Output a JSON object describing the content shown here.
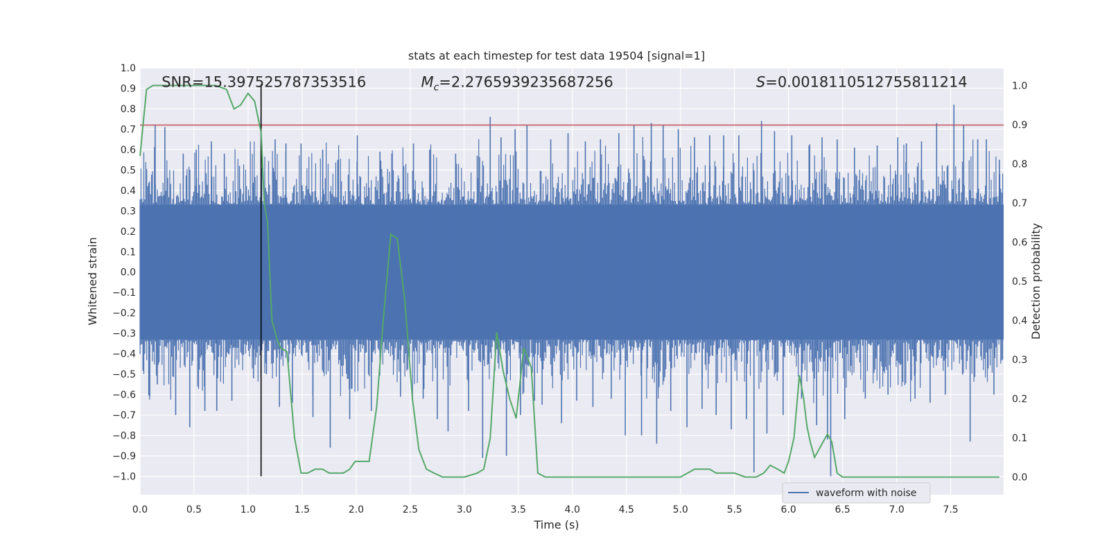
{
  "chart_data": {
    "type": "line",
    "title": "stats at each timestep for test data 19504 [signal=1]",
    "xlabel": "Time (s)",
    "ylabel": "Whitened strain",
    "y2label": "Detection probability",
    "xlim": [
      0.0,
      7.99
    ],
    "ylim": [
      -1.09,
      1.0
    ],
    "y2lim": [
      -0.045,
      1.045
    ],
    "x_ticks": [
      0.0,
      0.5,
      1.0,
      1.5,
      2.0,
      2.5,
      3.0,
      3.5,
      4.0,
      4.5,
      5.0,
      5.5,
      6.0,
      6.5,
      7.0,
      7.5
    ],
    "x_tick_labels": [
      "0.0",
      "0.5",
      "1.0",
      "1.5",
      "2.0",
      "2.5",
      "3.0",
      "3.5",
      "4.0",
      "4.5",
      "5.0",
      "5.5",
      "6.0",
      "6.5",
      "7.0",
      "7.5"
    ],
    "y_ticks": [
      1.0,
      0.9,
      0.8,
      0.7,
      0.6,
      0.5,
      0.4,
      0.3,
      0.2,
      0.1,
      0.0,
      -0.1,
      -0.2,
      -0.3,
      -0.4,
      -0.5,
      -0.6,
      -0.7,
      -0.8,
      -0.9,
      -1.0
    ],
    "y_tick_labels": [
      "1.0",
      "0.9",
      "0.8",
      "0.7",
      "0.6",
      "0.5",
      "0.4",
      "0.3",
      "0.2",
      "0.1",
      "0.0",
      "−0.1",
      "−0.2",
      "−0.3",
      "−0.4",
      "−0.5",
      "−0.6",
      "−0.7",
      "−0.8",
      "−0.9",
      "−1.0"
    ],
    "y2_ticks": [
      1.0,
      0.9,
      0.8,
      0.7,
      0.6,
      0.5,
      0.4,
      0.3,
      0.2,
      0.1,
      0.0
    ],
    "y2_tick_labels": [
      "1.0",
      "0.9",
      "0.8",
      "0.7",
      "0.6",
      "0.5",
      "0.4",
      "0.3",
      "0.2",
      "0.1",
      "0.0"
    ],
    "grid": true,
    "legend_position": "lower-right",
    "background_color": "#eaeaf2",
    "waveform": {
      "name": "waveform with noise",
      "color": "#4c72b0",
      "band_lower": -0.33,
      "band_upper": 0.33,
      "spikes": [
        [
          0.09,
          -0.61
        ],
        [
          0.14,
          0.72
        ],
        [
          0.16,
          -0.55
        ],
        [
          0.23,
          0.71
        ],
        [
          0.33,
          -0.7
        ],
        [
          0.4,
          0.58
        ],
        [
          0.46,
          -0.76
        ],
        [
          0.52,
          0.6
        ],
        [
          0.6,
          -0.68
        ],
        [
          0.66,
          0.64
        ],
        [
          0.71,
          -0.68
        ],
        [
          0.78,
          0.58
        ],
        [
          0.85,
          -0.63
        ],
        [
          0.92,
          0.52
        ],
        [
          1.05,
          -0.52
        ],
        [
          1.12,
          0.76
        ],
        [
          1.17,
          -0.5
        ],
        [
          1.25,
          0.65
        ],
        [
          1.29,
          -0.66
        ],
        [
          1.35,
          0.63
        ],
        [
          1.41,
          -0.64
        ],
        [
          1.49,
          0.63
        ],
        [
          1.6,
          -0.71
        ],
        [
          1.69,
          0.6
        ],
        [
          1.76,
          -0.86
        ],
        [
          1.83,
          0.55
        ],
        [
          1.94,
          -0.72
        ],
        [
          2.01,
          0.67
        ],
        [
          2.14,
          -0.68
        ],
        [
          2.22,
          0.59
        ],
        [
          2.33,
          0.58
        ],
        [
          2.41,
          -0.61
        ],
        [
          2.53,
          0.63
        ],
        [
          2.62,
          -0.62
        ],
        [
          2.68,
          0.6
        ],
        [
          2.75,
          -0.72
        ],
        [
          2.85,
          -0.78
        ],
        [
          2.92,
          0.58
        ],
        [
          3.04,
          -0.68
        ],
        [
          3.12,
          0.57
        ],
        [
          3.17,
          -0.91
        ],
        [
          3.24,
          0.76
        ],
        [
          3.34,
          0.66
        ],
        [
          3.39,
          -0.9
        ],
        [
          3.47,
          0.7
        ],
        [
          3.52,
          -0.7
        ],
        [
          3.58,
          0.72
        ],
        [
          3.65,
          -0.63
        ],
        [
          3.72,
          -0.65
        ],
        [
          3.8,
          0.65
        ],
        [
          3.9,
          -0.74
        ],
        [
          3.96,
          0.68
        ],
        [
          4.04,
          -0.63
        ],
        [
          4.12,
          0.64
        ],
        [
          4.19,
          -0.66
        ],
        [
          4.26,
          0.65
        ],
        [
          4.36,
          -0.62
        ],
        [
          4.43,
          0.68
        ],
        [
          4.49,
          -0.8
        ],
        [
          4.57,
          0.72
        ],
        [
          4.64,
          -0.8
        ],
        [
          4.73,
          0.73
        ],
        [
          4.78,
          -0.84
        ],
        [
          4.84,
          0.72
        ],
        [
          4.91,
          -0.68
        ],
        [
          4.98,
          0.7
        ],
        [
          5.06,
          -0.76
        ],
        [
          5.13,
          0.66
        ],
        [
          5.2,
          -0.67
        ],
        [
          5.27,
          0.67
        ],
        [
          5.33,
          -0.7
        ],
        [
          5.4,
          0.67
        ],
        [
          5.47,
          -0.77
        ],
        [
          5.54,
          0.67
        ],
        [
          5.61,
          -0.72
        ],
        [
          5.68,
          -0.98
        ],
        [
          5.75,
          0.74
        ],
        [
          5.8,
          -0.79
        ],
        [
          5.87,
          0.69
        ],
        [
          5.95,
          -0.7
        ],
        [
          6.03,
          0.67
        ],
        [
          6.12,
          -0.62
        ],
        [
          6.19,
          0.62
        ],
        [
          6.26,
          -0.75
        ],
        [
          6.31,
          0.66
        ],
        [
          6.36,
          -0.82
        ],
        [
          6.39,
          -1.0
        ],
        [
          6.45,
          0.65
        ],
        [
          6.52,
          -0.72
        ],
        [
          6.61,
          0.61
        ],
        [
          6.71,
          -0.62
        ],
        [
          6.82,
          0.62
        ],
        [
          6.92,
          -0.6
        ],
        [
          7.01,
          0.66
        ],
        [
          7.09,
          0.63
        ],
        [
          7.17,
          -0.62
        ],
        [
          7.23,
          0.64
        ],
        [
          7.31,
          -0.64
        ],
        [
          7.37,
          0.73
        ],
        [
          7.45,
          -0.6
        ],
        [
          7.53,
          0.82
        ],
        [
          7.62,
          0.72
        ],
        [
          7.68,
          -0.83
        ],
        [
          7.75,
          0.65
        ],
        [
          7.83,
          0.65
        ],
        [
          7.9,
          -0.6
        ],
        [
          7.95,
          0.55
        ]
      ]
    },
    "threshold": {
      "value": 0.72,
      "color": "#c44e52"
    },
    "marker_line": {
      "x": 1.12,
      "color": "#000000"
    },
    "detection_probability": {
      "color": "#55a868",
      "x": [
        0.0,
        0.06,
        0.12,
        0.18,
        0.25,
        0.4,
        0.55,
        0.7,
        0.8,
        0.87,
        0.93,
        1.0,
        1.06,
        1.12,
        1.15,
        1.18,
        1.22,
        1.27,
        1.3,
        1.36,
        1.43,
        1.49,
        1.55,
        1.62,
        1.69,
        1.75,
        1.82,
        1.88,
        1.94,
        1.99,
        2.05,
        2.12,
        2.19,
        2.25,
        2.32,
        2.38,
        2.45,
        2.52,
        2.58,
        2.65,
        2.72,
        2.8,
        3.0,
        3.12,
        3.18,
        3.24,
        3.3,
        3.36,
        3.42,
        3.48,
        3.55,
        3.62,
        3.68,
        3.75,
        4.0,
        4.5,
        4.8,
        5.0,
        5.13,
        5.2,
        5.27,
        5.33,
        5.4,
        5.5,
        5.6,
        5.7,
        5.77,
        5.83,
        5.9,
        5.96,
        6.0,
        6.05,
        6.1,
        6.14,
        6.17,
        6.2,
        6.24,
        6.3,
        6.36,
        6.4,
        6.45,
        6.5,
        7.0,
        7.5,
        7.95
      ],
      "y": [
        0.82,
        0.99,
        1.0,
        1.0,
        1.0,
        1.0,
        1.0,
        1.0,
        0.99,
        0.94,
        0.95,
        0.98,
        0.96,
        0.88,
        0.7,
        0.65,
        0.4,
        0.35,
        0.33,
        0.32,
        0.1,
        0.01,
        0.01,
        0.02,
        0.02,
        0.01,
        0.01,
        0.01,
        0.02,
        0.04,
        0.04,
        0.04,
        0.18,
        0.4,
        0.62,
        0.61,
        0.45,
        0.2,
        0.07,
        0.02,
        0.01,
        0.0,
        0.0,
        0.01,
        0.02,
        0.1,
        0.37,
        0.27,
        0.2,
        0.15,
        0.33,
        0.28,
        0.01,
        0.0,
        0.0,
        0.0,
        0.0,
        0.0,
        0.02,
        0.02,
        0.02,
        0.01,
        0.01,
        0.01,
        0.0,
        0.0,
        0.01,
        0.03,
        0.02,
        0.01,
        0.04,
        0.1,
        0.26,
        0.2,
        0.13,
        0.09,
        0.05,
        0.08,
        0.11,
        0.09,
        0.01,
        0.0,
        0.0,
        0.0,
        0.0
      ]
    },
    "annotations": [
      {
        "text": "SNR=15.397525787353516",
        "x": 0.2,
        "y": 0.93
      },
      {
        "symbol": "M",
        "subscript": "c",
        "text": "=2.2765939235687256",
        "x": 2.6,
        "y": 0.93
      },
      {
        "symbol": "S",
        "text": "=0.0018110512755811214",
        "x": 5.7,
        "y": 0.93
      }
    ]
  }
}
